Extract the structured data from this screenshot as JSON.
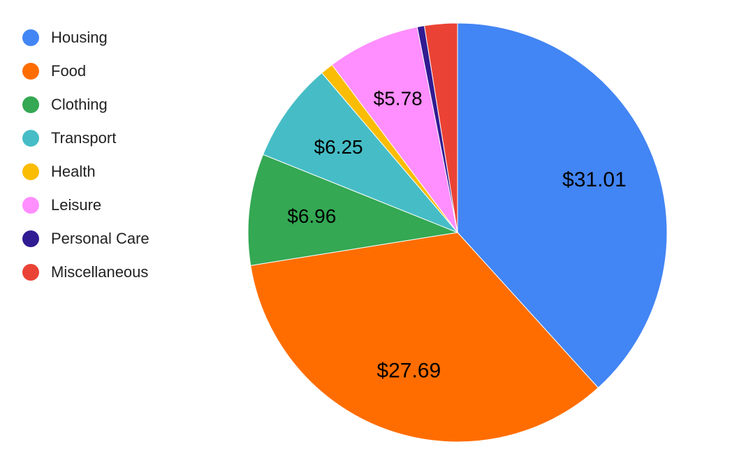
{
  "chart_data": {
    "type": "pie",
    "title": "",
    "legend_position": "left",
    "categories": [
      "Housing",
      "Food",
      "Clothing",
      "Transport",
      "Health",
      "Leisure",
      "Personal Care",
      "Miscellaneous"
    ],
    "values": [
      31.01,
      27.69,
      6.96,
      6.25,
      0.8,
      5.78,
      0.45,
      2.05
    ],
    "colors": [
      "#4285f4",
      "#ff6d00",
      "#34a853",
      "#46bdc6",
      "#fbbc04",
      "#ff8eff",
      "#311b92",
      "#ea4335"
    ],
    "data_labels": [
      "$31.01",
      "$27.69",
      "$6.96",
      "$6.25",
      "",
      "$5.78",
      "",
      ""
    ]
  }
}
